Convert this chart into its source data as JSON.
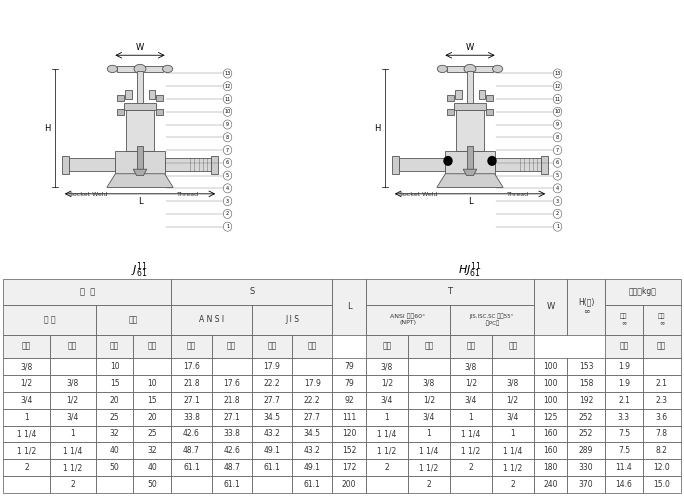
{
  "bg_color": "#ffffff",
  "diagram_left_label": "J",
  "diagram_left_sup": "11",
  "diagram_left_sub": "61",
  "diagram_right_label": "HJ",
  "diagram_right_sup": "11",
  "diagram_right_sub": "61",
  "table_col_widths": [
    5.5,
    5.5,
    4.5,
    4.5,
    4.8,
    4.8,
    4.8,
    4.8,
    4.0,
    5.0,
    5.0,
    5.0,
    5.0,
    4.0,
    4.5,
    4.5,
    4.5
  ],
  "header1": [
    "规  格",
    "S",
    "T",
    "重量（kg）"
  ],
  "header2_labels": [
    "英 制",
    "公制",
    "A N S I",
    "J I S",
    "ANSI 牙型60°\n(NPT)",
    "JIS.ISC.SC 牙型55°\n·（PC）"
  ],
  "header3": [
    "缩径",
    "全径",
    "缩径",
    "全径",
    "缩径",
    "全径",
    "缩径",
    "全径",
    "",
    "缩径",
    "全径",
    "缩径",
    "全径",
    "",
    "",
    "缩径",
    "全径"
  ],
  "rows": [
    [
      "3/8",
      "",
      "10",
      "",
      "17.6",
      "",
      "17.9",
      "",
      "79",
      "3/8",
      "",
      "3/8",
      "",
      "100",
      "153",
      "1.9",
      ""
    ],
    [
      "1/2",
      "3/8",
      "15",
      "10",
      "21.8",
      "17.6",
      "22.2",
      "17.9",
      "79",
      "1/2",
      "3/8",
      "1/2",
      "3/8",
      "100",
      "158",
      "1.9",
      "2.1"
    ],
    [
      "3/4",
      "1/2",
      "20",
      "15",
      "27.1",
      "21.8",
      "27.7",
      "22.2",
      "92",
      "3/4",
      "1/2",
      "3/4",
      "1/2",
      "100",
      "192",
      "2.1",
      "2.3"
    ],
    [
      "1",
      "3/4",
      "25",
      "20",
      "33.8",
      "27.1",
      "34.5",
      "27.7",
      "111",
      "1",
      "3/4",
      "1",
      "3/4",
      "125",
      "252",
      "3.3",
      "3.6"
    ],
    [
      "1 1/4",
      "1",
      "32",
      "25",
      "42.6",
      "33.8",
      "43.2",
      "34.5",
      "120",
      "1 1/4",
      "1",
      "1 1/4",
      "1",
      "160",
      "252",
      "7.5",
      "7.8"
    ],
    [
      "1 1/2",
      "1 1/4",
      "40",
      "32",
      "48.7",
      "42.6",
      "49.1",
      "43.2",
      "152",
      "1 1/2",
      "1 1/4",
      "1 1/2",
      "1 1/4",
      "160",
      "289",
      "7.5",
      "8.2"
    ],
    [
      "2",
      "1 1/2",
      "50",
      "40",
      "61.1",
      "48.7",
      "61.1",
      "49.1",
      "172",
      "2",
      "1 1/2",
      "2",
      "1 1/2",
      "180",
      "330",
      "11.4",
      "12.0"
    ],
    [
      "",
      "2",
      "",
      "50",
      "",
      "61.1",
      "",
      "61.1",
      "200",
      "",
      "2",
      "",
      "2",
      "240",
      "370",
      "14.6",
      "15.0"
    ]
  ]
}
